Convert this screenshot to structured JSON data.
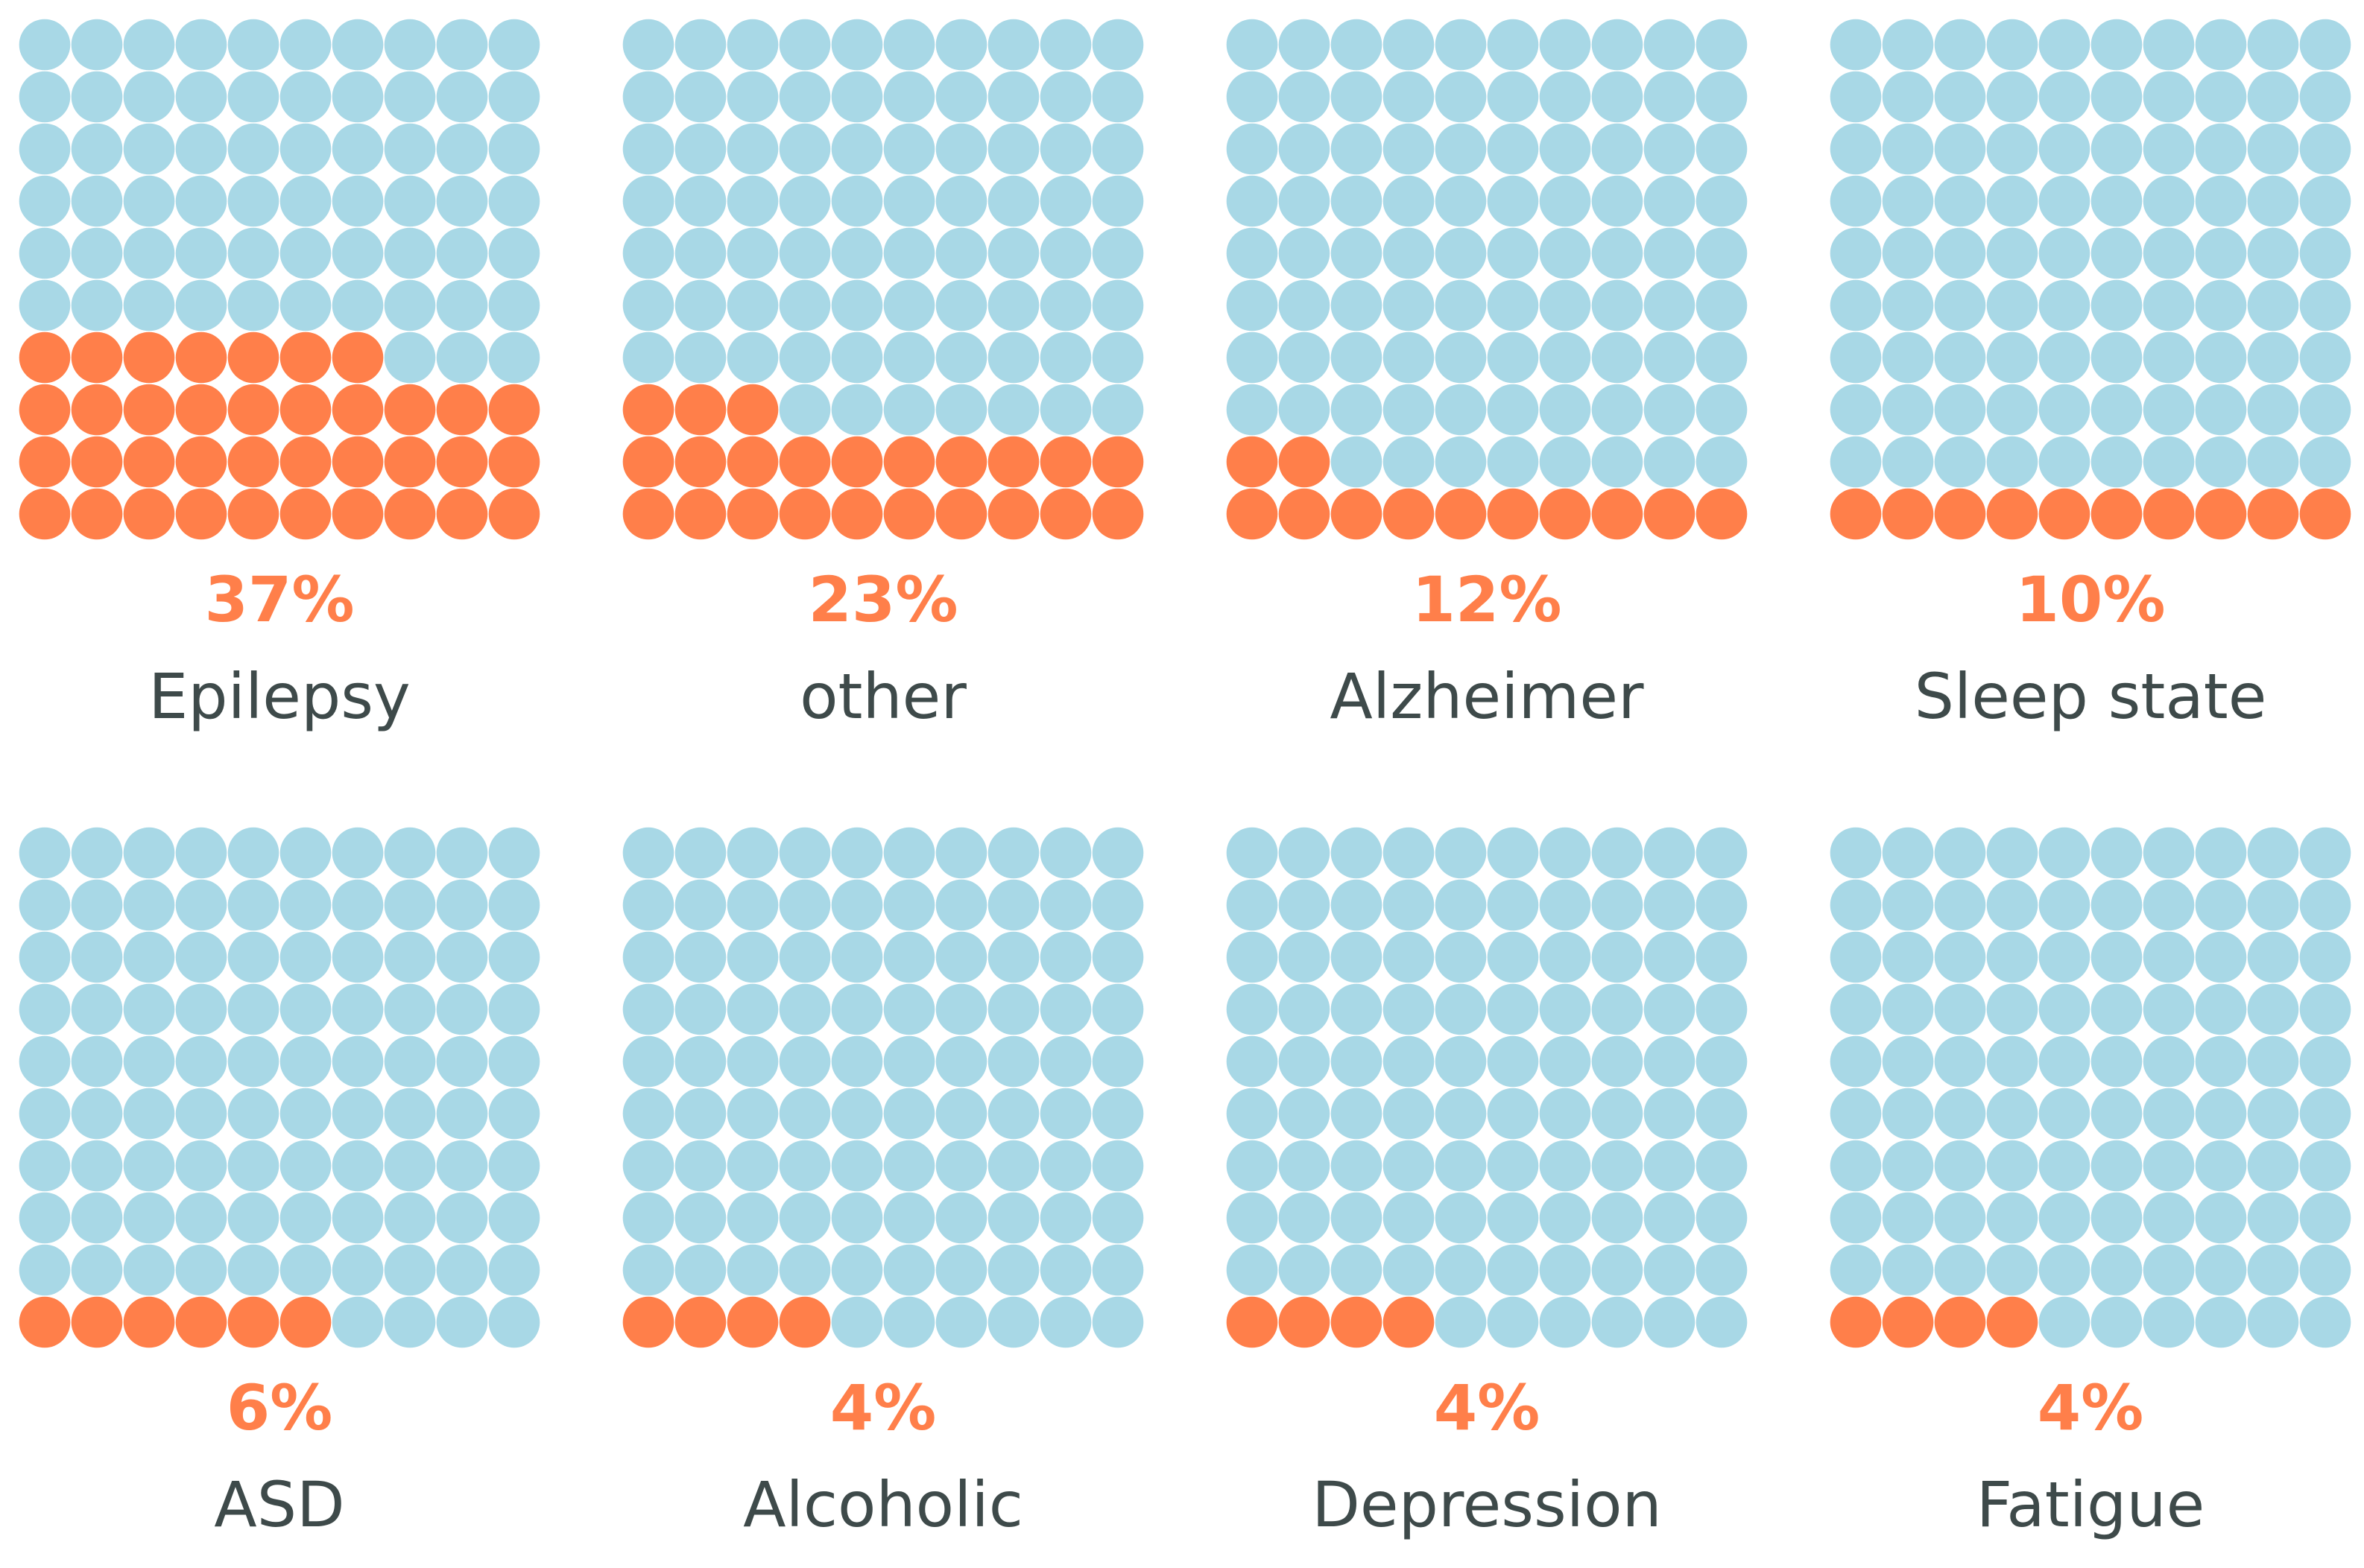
{
  "chart_data": [
    {
      "type": "waffle",
      "label": "Epilepsy",
      "percent_label": "37%",
      "value": 37,
      "total": 100
    },
    {
      "type": "waffle",
      "label": "other",
      "percent_label": "23%",
      "value": 23,
      "total": 100
    },
    {
      "type": "waffle",
      "label": "Alzheimer",
      "percent_label": "12%",
      "value": 12,
      "total": 100
    },
    {
      "type": "waffle",
      "label": "Sleep state",
      "percent_label": "10%",
      "value": 10,
      "total": 100
    },
    {
      "type": "waffle",
      "label": "ASD",
      "percent_label": "6%",
      "value": 6,
      "total": 100
    },
    {
      "type": "waffle",
      "label": "Alcoholic",
      "percent_label": "4%",
      "value": 4,
      "total": 100
    },
    {
      "type": "waffle",
      "label": "Depression",
      "percent_label": "4%",
      "value": 4,
      "total": 100
    },
    {
      "type": "waffle",
      "label": "Fatigue",
      "percent_label": "4%",
      "value": 4,
      "total": 100
    }
  ],
  "colors": {
    "filled": "#ff7f4a",
    "empty": "#a8d8e6",
    "percent_text": "#ff7f4a",
    "label_text": "#3e4a4a"
  }
}
